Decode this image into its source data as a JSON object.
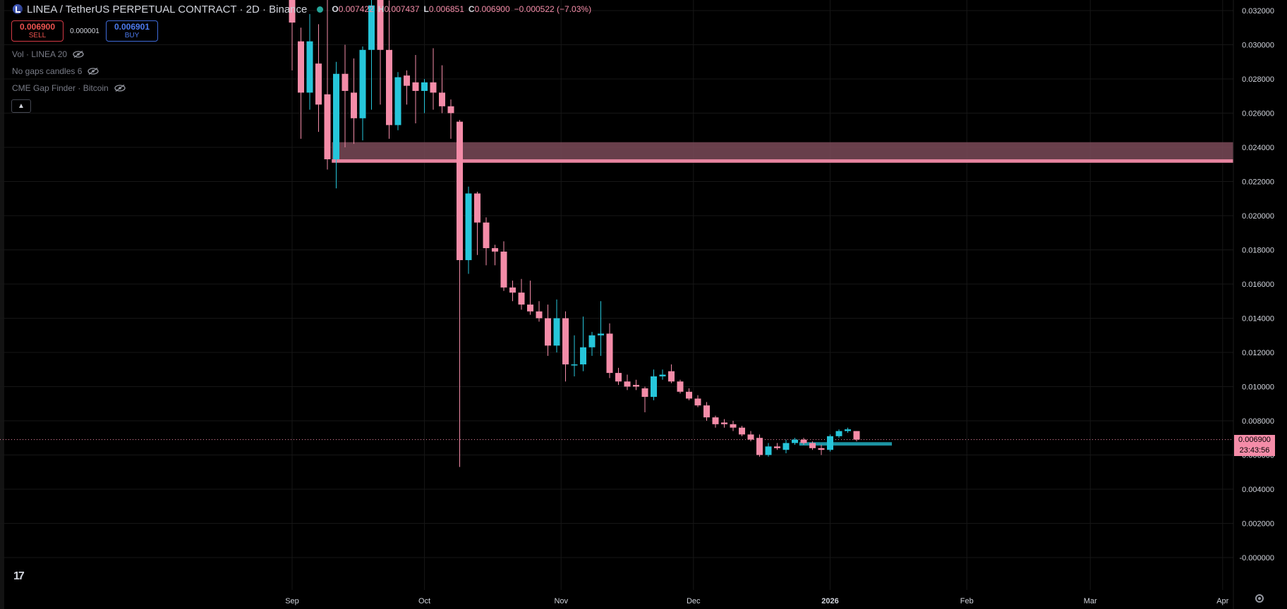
{
  "header": {
    "title": "LINEA / TetherUS PERPETUAL CONTRACT · 2D · Binance",
    "open_label": "O",
    "open": "0.007422",
    "high_label": "H",
    "high": "0.007437",
    "low_label": "L",
    "low": "0.006851",
    "close_label": "C",
    "close": "0.006900",
    "change": "−0.000522 (−7.03%)"
  },
  "trade": {
    "sell_price": "0.006900",
    "sell_label": "SELL",
    "spread": "0.000001",
    "buy_price": "0.006901",
    "buy_label": "BUY"
  },
  "indicators": [
    {
      "label": "Vol · LINEA 20"
    },
    {
      "label": "No gaps candles 6"
    },
    {
      "label": "CME Gap Finder · Bitcoin"
    }
  ],
  "logo_text": "17",
  "price_tag": {
    "price": "0.006900",
    "countdown": "23:43:56"
  },
  "colors": {
    "up": "#26c6da",
    "down": "#f48ca8",
    "zone": "#7a4a58",
    "zone_edge": "#f48ca8",
    "grid": "#161616",
    "axis_text": "#d1d4dc",
    "background": "#000000"
  },
  "icons": {
    "symbol": "symbol-icon",
    "hide": "eye-slash-icon",
    "collapse": "chevron-up-icon",
    "settings": "gear-icon"
  },
  "chart_data": {
    "type": "candlestick",
    "ylim": [
      -0.0005,
      0.0325
    ],
    "y_ticks": [
      "0.032000",
      "0.030000",
      "0.028000",
      "0.026000",
      "0.024000",
      "0.022000",
      "0.020000",
      "0.018000",
      "0.016000",
      "0.014000",
      "0.012000",
      "0.010000",
      "0.008000",
      "0.006000",
      "0.004000",
      "0.002000",
      "-0.000000"
    ],
    "x_ticks": [
      {
        "label": "Sep",
        "i": 0
      },
      {
        "label": "Oct",
        "i": 15
      },
      {
        "label": "Nov",
        "i": 30.5
      },
      {
        "label": "Dec",
        "i": 45.5
      },
      {
        "label": "2026",
        "i": 61
      },
      {
        "label": "Feb",
        "i": 76.5
      },
      {
        "label": "Mar",
        "i": 90.5
      },
      {
        "label": "Apr",
        "i": 105.5
      }
    ],
    "candles": [
      {
        "o": 0.0335,
        "h": 0.0335,
        "l": 0.0285,
        "c": 0.0313
      },
      {
        "o": 0.0302,
        "h": 0.031,
        "l": 0.0245,
        "c": 0.0272
      },
      {
        "o": 0.0272,
        "h": 0.0318,
        "l": 0.0262,
        "c": 0.0302
      },
      {
        "o": 0.0289,
        "h": 0.0312,
        "l": 0.0249,
        "c": 0.0265
      },
      {
        "o": 0.0271,
        "h": 0.033,
        "l": 0.0227,
        "c": 0.0233
      },
      {
        "o": 0.0233,
        "h": 0.029,
        "l": 0.0216,
        "c": 0.0283
      },
      {
        "o": 0.0283,
        "h": 0.03,
        "l": 0.024,
        "c": 0.0273
      },
      {
        "o": 0.0272,
        "h": 0.0292,
        "l": 0.0242,
        "c": 0.0257
      },
      {
        "o": 0.0257,
        "h": 0.0299,
        "l": 0.0244,
        "c": 0.0297
      },
      {
        "o": 0.0297,
        "h": 0.0335,
        "l": 0.0262,
        "c": 0.0323
      },
      {
        "o": 0.0335,
        "h": 0.0335,
        "l": 0.0265,
        "c": 0.0297
      },
      {
        "o": 0.0297,
        "h": 0.0326,
        "l": 0.0245,
        "c": 0.0253
      },
      {
        "o": 0.0253,
        "h": 0.0284,
        "l": 0.025,
        "c": 0.0281
      },
      {
        "o": 0.0282,
        "h": 0.0285,
        "l": 0.0265,
        "c": 0.0276
      },
      {
        "o": 0.0278,
        "h": 0.0294,
        "l": 0.0254,
        "c": 0.0273
      },
      {
        "o": 0.0273,
        "h": 0.028,
        "l": 0.026,
        "c": 0.0278
      },
      {
        "o": 0.0278,
        "h": 0.0298,
        "l": 0.0262,
        "c": 0.0272
      },
      {
        "o": 0.0272,
        "h": 0.0288,
        "l": 0.026,
        "c": 0.0264
      },
      {
        "o": 0.0264,
        "h": 0.0268,
        "l": 0.0245,
        "c": 0.026
      },
      {
        "o": 0.0255,
        "h": 0.0256,
        "l": 0.0053,
        "c": 0.0174
      },
      {
        "o": 0.0174,
        "h": 0.0217,
        "l": 0.0166,
        "c": 0.0213
      },
      {
        "o": 0.0213,
        "h": 0.0214,
        "l": 0.0177,
        "c": 0.0196
      },
      {
        "o": 0.0196,
        "h": 0.0199,
        "l": 0.0171,
        "c": 0.0181
      },
      {
        "o": 0.0181,
        "h": 0.0183,
        "l": 0.0171,
        "c": 0.0179
      },
      {
        "o": 0.0179,
        "h": 0.0185,
        "l": 0.0156,
        "c": 0.0158
      },
      {
        "o": 0.0158,
        "h": 0.0162,
        "l": 0.015,
        "c": 0.0155
      },
      {
        "o": 0.0155,
        "h": 0.0163,
        "l": 0.0145,
        "c": 0.0148
      },
      {
        "o": 0.0148,
        "h": 0.0162,
        "l": 0.0142,
        "c": 0.0144
      },
      {
        "o": 0.0144,
        "h": 0.015,
        "l": 0.0138,
        "c": 0.014
      },
      {
        "o": 0.014,
        "h": 0.0148,
        "l": 0.0118,
        "c": 0.0124
      },
      {
        "o": 0.0124,
        "h": 0.0151,
        "l": 0.012,
        "c": 0.014
      },
      {
        "o": 0.014,
        "h": 0.0144,
        "l": 0.0103,
        "c": 0.0113
      },
      {
        "o": 0.0113,
        "h": 0.013,
        "l": 0.0106,
        "c": 0.0113
      },
      {
        "o": 0.0113,
        "h": 0.0141,
        "l": 0.0109,
        "c": 0.0123
      },
      {
        "o": 0.0123,
        "h": 0.0132,
        "l": 0.0118,
        "c": 0.013
      },
      {
        "o": 0.013,
        "h": 0.015,
        "l": 0.0118,
        "c": 0.0131
      },
      {
        "o": 0.0131,
        "h": 0.0137,
        "l": 0.0105,
        "c": 0.0108
      },
      {
        "o": 0.0108,
        "h": 0.0111,
        "l": 0.0101,
        "c": 0.0103
      },
      {
        "o": 0.0103,
        "h": 0.0107,
        "l": 0.0098,
        "c": 0.01
      },
      {
        "o": 0.0101,
        "h": 0.0104,
        "l": 0.0098,
        "c": 0.01
      },
      {
        "o": 0.0099,
        "h": 0.01,
        "l": 0.0085,
        "c": 0.0094
      },
      {
        "o": 0.0094,
        "h": 0.011,
        "l": 0.0092,
        "c": 0.0106
      },
      {
        "o": 0.0106,
        "h": 0.011,
        "l": 0.0104,
        "c": 0.0107
      },
      {
        "o": 0.0109,
        "h": 0.0113,
        "l": 0.0102,
        "c": 0.0103
      },
      {
        "o": 0.0103,
        "h": 0.0104,
        "l": 0.0096,
        "c": 0.0097
      },
      {
        "o": 0.0097,
        "h": 0.0099,
        "l": 0.0092,
        "c": 0.0093
      },
      {
        "o": 0.0093,
        "h": 0.0095,
        "l": 0.0088,
        "c": 0.0089
      },
      {
        "o": 0.0089,
        "h": 0.0091,
        "l": 0.008,
        "c": 0.0082
      },
      {
        "o": 0.0082,
        "h": 0.0083,
        "l": 0.0076,
        "c": 0.0078
      },
      {
        "o": 0.0079,
        "h": 0.0081,
        "l": 0.0076,
        "c": 0.0078
      },
      {
        "o": 0.0078,
        "h": 0.008,
        "l": 0.0074,
        "c": 0.0076
      },
      {
        "o": 0.0076,
        "h": 0.0077,
        "l": 0.0071,
        "c": 0.0072
      },
      {
        "o": 0.0072,
        "h": 0.0074,
        "l": 0.0068,
        "c": 0.0069
      },
      {
        "o": 0.007,
        "h": 0.0072,
        "l": 0.0059,
        "c": 0.006
      },
      {
        "o": 0.006,
        "h": 0.0067,
        "l": 0.0059,
        "c": 0.0065
      },
      {
        "o": 0.0065,
        "h": 0.0067,
        "l": 0.0063,
        "c": 0.0064
      },
      {
        "o": 0.0063,
        "h": 0.0069,
        "l": 0.0061,
        "c": 0.0067
      },
      {
        "o": 0.0067,
        "h": 0.007,
        "l": 0.0066,
        "c": 0.0069
      },
      {
        "o": 0.0069,
        "h": 0.007,
        "l": 0.0066,
        "c": 0.0067
      },
      {
        "o": 0.0067,
        "h": 0.0068,
        "l": 0.0063,
        "c": 0.0064
      },
      {
        "o": 0.0064,
        "h": 0.0066,
        "l": 0.006,
        "c": 0.0063
      },
      {
        "o": 0.0063,
        "h": 0.0072,
        "l": 0.0062,
        "c": 0.0071
      },
      {
        "o": 0.0071,
        "h": 0.0075,
        "l": 0.007,
        "c": 0.0074
      },
      {
        "o": 0.0074,
        "h": 0.0076,
        "l": 0.0073,
        "c": 0.0075
      },
      {
        "o": 0.0074,
        "h": 0.0074,
        "l": 0.0068,
        "c": 0.0069
      }
    ],
    "zones": [
      {
        "y0": 0.0231,
        "y1": 0.0243,
        "i_start": 4.5,
        "color": "zone",
        "edge": 0.0233
      },
      {
        "y0": 0.00655,
        "y1": 0.00675,
        "i_start": 57.5,
        "i_end": 68,
        "color": "up"
      }
    ],
    "last_price": 0.0069
  }
}
